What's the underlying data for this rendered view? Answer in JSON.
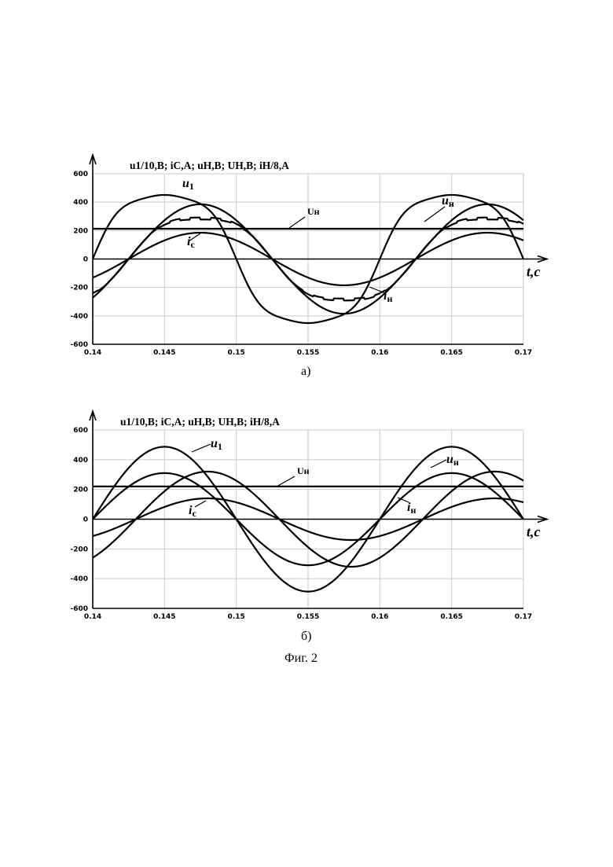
{
  "figure_caption": "Фиг. 2",
  "chart_data": [
    {
      "id": "a",
      "type": "line",
      "subplot_label": "а)",
      "title": "u1/10,B; iC,A; uH,B; UH,B; iH/8,A",
      "xlabel": "t,c",
      "xlim": [
        0.14,
        0.17
      ],
      "ylim": [
        -600,
        600
      ],
      "x_ticks": [
        "0.14",
        "0.145",
        "0.15",
        "0.155",
        "0.16",
        "0.165",
        "0.17"
      ],
      "y_ticks": [
        "600",
        "400",
        "200",
        "0",
        "-200",
        "-400",
        "-600"
      ],
      "grid": true,
      "series": [
        {
          "name": "u1",
          "label_main": "u",
          "label_sub": "1",
          "shape": "distorted_sine",
          "amplitude": 490,
          "zero_cross": 0.14
        },
        {
          "name": "uH",
          "label_main": "u",
          "label_sub": "н",
          "shape": "stepped_sine",
          "amplitude": 300,
          "zero_cross": 0.1425
        },
        {
          "name": "iH",
          "label_main": "i",
          "label_sub": "н",
          "shape": "sine",
          "amplitude": 385,
          "zero_cross": 0.1425
        },
        {
          "name": "iC",
          "label_main": "i",
          "label_sub": "c",
          "shape": "sine",
          "amplitude": 185,
          "zero_cross": 0.1425
        },
        {
          "name": "UH",
          "label_main": "U",
          "label_sub": "н",
          "shape": "constant",
          "value": 213
        }
      ]
    },
    {
      "id": "b",
      "type": "line",
      "subplot_label": "б)",
      "title": "u1/10,B; iC,A; uH,B; UH,B; iH/8,A",
      "xlabel": "t,c",
      "xlim": [
        0.14,
        0.17
      ],
      "ylim": [
        -600,
        600
      ],
      "x_ticks": [
        "0.14",
        "0.145",
        "0.15",
        "0.155",
        "0.16",
        "0.165",
        "0.17"
      ],
      "y_ticks": [
        "600",
        "400",
        "200",
        "0",
        "-200",
        "-400",
        "-600"
      ],
      "grid": true,
      "series": [
        {
          "name": "u1",
          "label_main": "u",
          "label_sub": "1",
          "shape": "sine",
          "amplitude": 487,
          "zero_cross": 0.14
        },
        {
          "name": "uH",
          "label_main": "u",
          "label_sub": "н",
          "shape": "sine",
          "amplitude": 310,
          "zero_cross": 0.14
        },
        {
          "name": "iH",
          "label_main": "i",
          "label_sub": "н",
          "shape": "sine",
          "amplitude": 320,
          "zero_cross": 0.143
        },
        {
          "name": "iC",
          "label_main": "i",
          "label_sub": "c",
          "shape": "sine",
          "amplitude": 140,
          "zero_cross": 0.143
        },
        {
          "name": "UH",
          "label_main": "U",
          "label_sub": "н",
          "shape": "constant",
          "value": 220
        }
      ]
    }
  ]
}
